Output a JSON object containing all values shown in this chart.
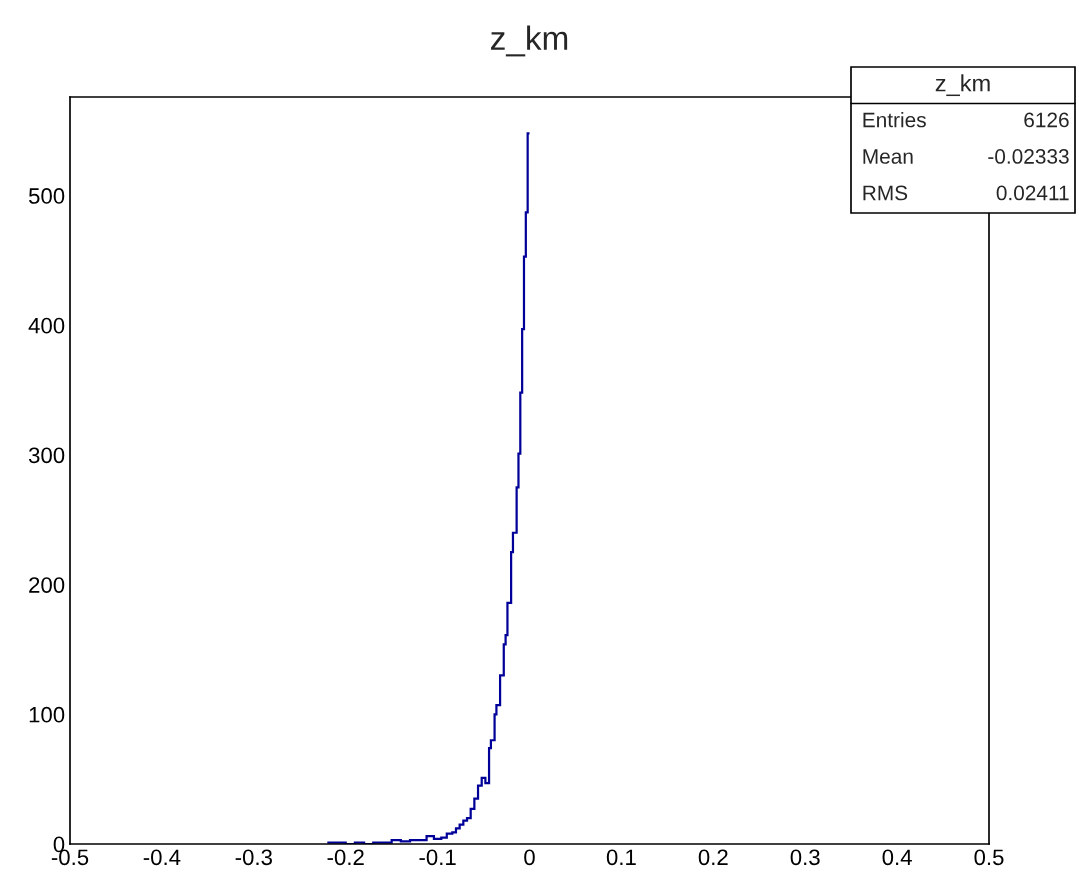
{
  "chart_data": {
    "type": "histogram",
    "title": "z_km",
    "bins": [
      -0.22,
      -0.21,
      -0.2,
      -0.19,
      -0.18,
      -0.17,
      -0.16,
      -0.15,
      -0.14,
      -0.13,
      -0.12,
      -0.112,
      -0.104,
      -0.096,
      -0.09,
      -0.084,
      -0.08,
      -0.076,
      -0.072,
      -0.068,
      -0.064,
      -0.06,
      -0.056,
      -0.052,
      -0.048,
      -0.044,
      -0.042,
      -0.038,
      -0.036,
      -0.032,
      -0.028,
      -0.026,
      -0.024,
      -0.02,
      -0.018,
      -0.014,
      -0.012,
      -0.01,
      -0.008,
      -0.006,
      -0.004,
      -0.002,
      0
    ],
    "values": [
      1,
      1,
      0,
      1,
      0,
      1,
      1,
      3,
      2,
      3,
      3,
      6,
      4,
      5,
      8,
      9,
      12,
      15,
      18,
      20,
      27,
      35,
      45,
      51,
      47,
      74,
      80,
      100,
      107,
      130,
      154,
      161,
      186,
      225,
      240,
      275,
      301,
      348,
      397,
      453,
      487,
      548
    ],
    "color": "#000099",
    "xlim": [
      -0.5,
      0.5
    ],
    "xticks": [
      -0.5,
      -0.4,
      -0.3,
      -0.2,
      -0.1,
      0,
      0.1,
      0.2,
      0.3,
      0.4,
      0.5
    ],
    "ylim": [
      0,
      576
    ],
    "yticks": [
      0,
      100,
      200,
      300,
      400,
      500
    ],
    "grid": false,
    "legend": false,
    "annotations": [
      "z_km",
      "Entries",
      "6126",
      "Mean",
      "-0.02333",
      "RMS",
      "0.02411"
    ]
  }
}
